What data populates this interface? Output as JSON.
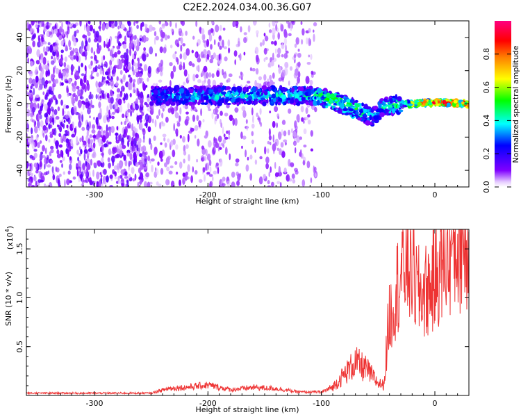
{
  "title": "C2E2.2024.034.00.36.G07",
  "colors": {
    "snr_line": "#ee3333",
    "frame": "#000000",
    "background": "#ffffff"
  },
  "chart_data": [
    {
      "type": "heatmap",
      "title": "C2E2.2024.034.00.36.G07",
      "xlabel": "Height of straight line (km)",
      "ylabel": "Frequency (Hz)",
      "xlim": [
        -360,
        30
      ],
      "ylim": [
        -50,
        50
      ],
      "x_ticks": [
        -300,
        -200,
        -100,
        0
      ],
      "y_ticks": [
        -40,
        -20,
        0,
        20,
        40
      ],
      "colorbar": {
        "label": "Normalized spectral amplitude",
        "range": [
          0,
          1
        ],
        "ticks": [
          0.0,
          0.2,
          0.4,
          0.6,
          0.8
        ],
        "tick_labels": [
          "0.0",
          "0.2",
          "0.4",
          "0.6",
          "0.8"
        ],
        "colormap": "rainbow"
      },
      "signal_track": {
        "x": [
          -250,
          -200,
          -150,
          -105,
          -90,
          -70,
          -55,
          -45,
          -30,
          -20,
          0,
          30
        ],
        "freq": [
          5,
          5,
          5,
          5,
          2,
          -3,
          -8,
          -2,
          0,
          0,
          1,
          0
        ],
        "amplitude": [
          0.35,
          0.4,
          0.4,
          0.45,
          0.55,
          0.5,
          0.4,
          0.45,
          0.5,
          0.7,
          0.85,
          0.9
        ]
      }
    },
    {
      "type": "line",
      "xlabel": "Height of straight line (km)",
      "ylabel": "SNR (10 * v/v)",
      "y_multiplier": "(x10",
      "y_multiplier_exp": "4",
      "y_multiplier_close": ")",
      "xlim": [
        -360,
        30
      ],
      "ylim": [
        0,
        1.7
      ],
      "x_ticks": [
        -300,
        -200,
        -100,
        0
      ],
      "y_ticks": [
        0.5,
        1.0,
        1.5
      ],
      "y_tick_labels": [
        "0.5",
        "1.0",
        "1.5"
      ],
      "series": [
        {
          "x": [
            -360,
            -300,
            -250,
            -235,
            -220,
            -200,
            -180,
            -160,
            -140,
            -120,
            -100,
            -90,
            -80,
            -70,
            -60,
            -50,
            -45,
            -40,
            -35,
            -30,
            -25,
            -20,
            -15,
            -10,
            -5,
            0,
            5,
            10,
            15,
            20,
            25,
            30
          ],
          "values": [
            0.02,
            0.02,
            0.02,
            0.06,
            0.07,
            0.09,
            0.05,
            0.07,
            0.06,
            0.03,
            0.03,
            0.08,
            0.2,
            0.32,
            0.25,
            0.12,
            0.1,
            0.8,
            1.1,
            1.3,
            1.45,
            1.35,
            1.1,
            1.1,
            1.15,
            1.25,
            1.4,
            1.5,
            1.55,
            1.6,
            1.65,
            1.7
          ]
        }
      ]
    }
  ]
}
